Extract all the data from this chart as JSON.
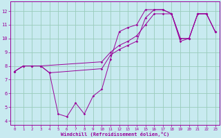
{
  "xlabel": "Windchill (Refroidissement éolien,°C)",
  "bg_color": "#c8eaf0",
  "line_color": "#990099",
  "grid_color": "#99ccbb",
  "xlim": [
    -0.5,
    23.5
  ],
  "ylim": [
    3.7,
    12.7
  ],
  "yticks": [
    4,
    5,
    6,
    7,
    8,
    9,
    10,
    11,
    12
  ],
  "xticks": [
    0,
    1,
    2,
    3,
    4,
    5,
    6,
    7,
    8,
    9,
    10,
    11,
    12,
    13,
    14,
    15,
    16,
    17,
    18,
    19,
    20,
    21,
    22,
    23
  ],
  "series1_x": [
    0,
    1,
    2,
    3,
    4,
    5,
    6,
    7,
    8,
    9,
    10,
    11,
    12,
    13,
    14,
    15,
    16,
    17,
    18,
    19,
    20,
    21,
    22,
    23
  ],
  "series1_y": [
    7.6,
    8.0,
    8.0,
    8.0,
    7.5,
    4.5,
    4.3,
    5.3,
    4.5,
    5.8,
    6.3,
    8.5,
    10.5,
    10.8,
    11.0,
    12.1,
    12.1,
    12.1,
    11.8,
    10.0,
    10.0,
    11.8,
    11.8,
    10.5
  ],
  "series2_x": [
    0,
    1,
    2,
    3,
    4,
    10,
    11,
    12,
    13,
    14,
    15,
    16,
    17,
    18,
    19,
    20,
    21,
    22,
    23
  ],
  "series2_y": [
    7.6,
    8.0,
    8.0,
    8.0,
    7.5,
    7.8,
    8.8,
    9.2,
    9.5,
    9.8,
    11.5,
    12.1,
    12.1,
    11.8,
    9.8,
    10.0,
    11.8,
    11.8,
    10.5
  ],
  "series3_x": [
    0,
    1,
    2,
    3,
    10,
    11,
    12,
    13,
    14,
    15,
    16,
    17,
    18,
    19,
    20,
    21,
    22,
    23
  ],
  "series3_y": [
    7.6,
    8.0,
    8.0,
    8.0,
    8.3,
    9.0,
    9.5,
    9.8,
    10.2,
    11.0,
    11.8,
    11.8,
    11.8,
    10.0,
    10.0,
    11.8,
    11.8,
    10.5
  ],
  "lw": 0.7,
  "ms": 1.8,
  "xlabel_fontsize": 5.0,
  "tick_fontsize_x": 4.2,
  "tick_fontsize_y": 5.0
}
